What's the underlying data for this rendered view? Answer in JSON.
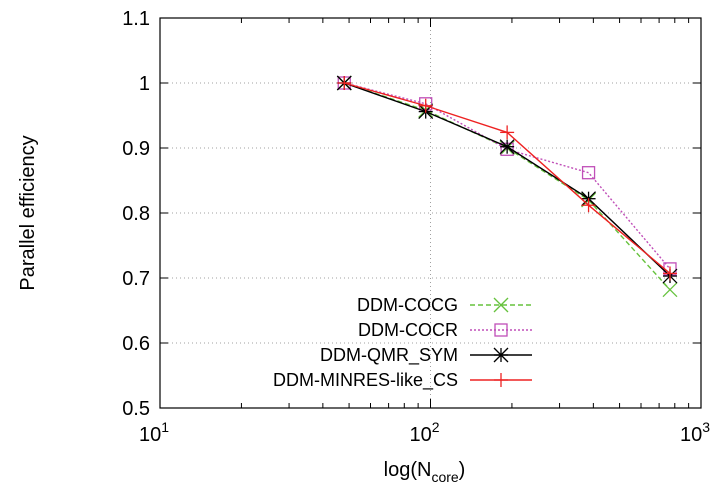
{
  "chart_data": {
    "type": "line",
    "xscale": "log",
    "xlim": [
      10,
      1000
    ],
    "ylim": [
      0.5,
      1.1
    ],
    "grid": true,
    "legend_position": "bottom-center",
    "xlabel": "log(N",
    "xlabel_sub": "core",
    "xlabel_close": ")",
    "ylabel": "Parallel efficiency",
    "x_ticks": [
      {
        "value": 10,
        "base": "10",
        "exp": "1"
      },
      {
        "value": 100,
        "base": "10",
        "exp": "2"
      },
      {
        "value": 1000,
        "base": "10",
        "exp": "3"
      }
    ],
    "y_ticks": [
      {
        "value": 0.5,
        "label": "0.5"
      },
      {
        "value": 0.6,
        "label": "0.6"
      },
      {
        "value": 0.7,
        "label": "0.7"
      },
      {
        "value": 0.8,
        "label": "0.8"
      },
      {
        "value": 0.9,
        "label": "0.9"
      },
      {
        "value": 1.0,
        "label": "1"
      },
      {
        "value": 1.1,
        "label": "1.1"
      }
    ],
    "x": [
      48,
      96,
      192,
      384,
      768
    ],
    "series": [
      {
        "name": "DDM-COCG",
        "color": "#66c23d",
        "dash": "5,3",
        "marker": "x",
        "values": [
          1.0,
          0.958,
          0.9,
          0.82,
          0.682
        ]
      },
      {
        "name": "DDM-COCR",
        "color": "#c04fb8",
        "dash": "2,2",
        "marker": "square",
        "values": [
          1.0,
          0.968,
          0.898,
          0.862,
          0.714
        ]
      },
      {
        "name": "DDM-QMR_SYM",
        "color": "#000000",
        "dash": "",
        "marker": "asterisk",
        "values": [
          1.0,
          0.956,
          0.902,
          0.822,
          0.703
        ]
      },
      {
        "name": "DDM-MINRES-like_CS",
        "color": "#ee2222",
        "dash": "",
        "marker": "plus",
        "values": [
          1.0,
          0.965,
          0.924,
          0.812,
          0.707
        ]
      }
    ]
  }
}
